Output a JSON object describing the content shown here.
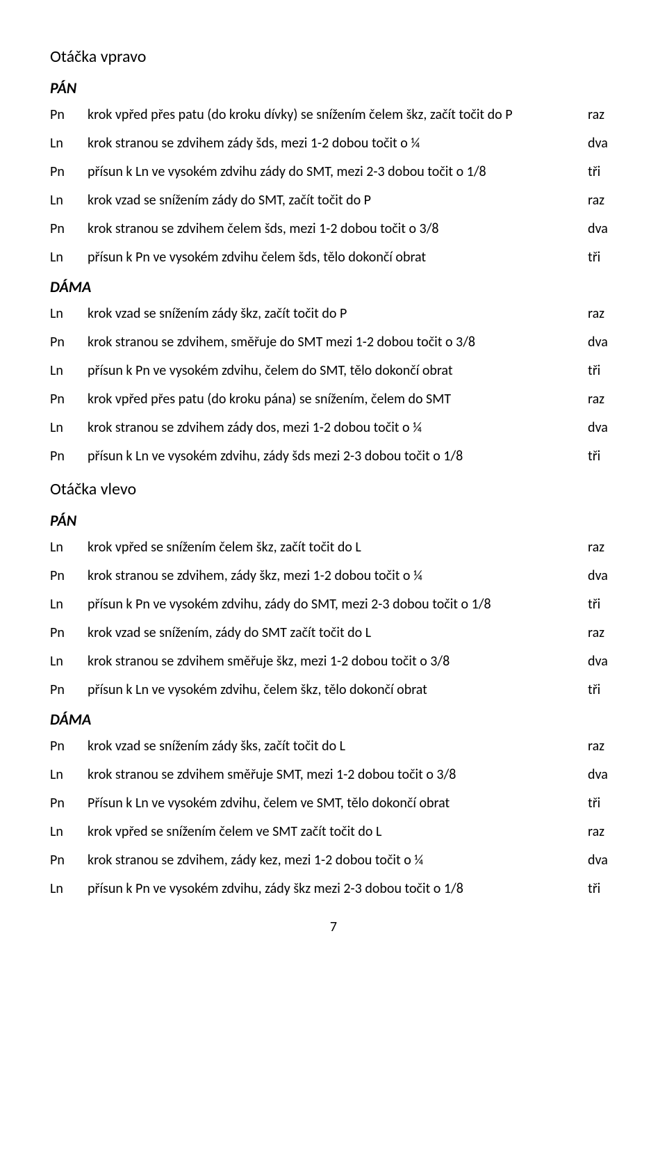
{
  "section1": {
    "title": "Otáčka vpravo",
    "pan": {
      "label": "PÁN",
      "rows": [
        {
          "foot": "Pn",
          "desc": "krok vpřed přes patu (do kroku dívky) se snížením čelem škz, začít točit do P",
          "count": "raz"
        },
        {
          "foot": "Ln",
          "desc": "krok stranou se zdvihem zády šds, mezi 1-2 dobou točit o ¼",
          "count": "dva"
        },
        {
          "foot": "Pn",
          "desc": "přísun k Ln ve vysokém zdvihu zády do SMT, mezi 2-3 dobou točit o 1/8",
          "count": "tři"
        },
        {
          "foot": "Ln",
          "desc": "krok vzad se snížením zády do SMT, začít točit do P",
          "count": "raz"
        },
        {
          "foot": "Pn",
          "desc": "krok stranou se zdvihem čelem šds, mezi 1-2 dobou točit o 3/8",
          "count": "dva"
        },
        {
          "foot": "Ln",
          "desc": "přísun k Pn ve vysokém zdvihu čelem šds, tělo dokončí obrat",
          "count": "tři"
        }
      ]
    },
    "dama": {
      "label": "DÁMA",
      "rows": [
        {
          "foot": "Ln",
          "desc": "krok vzad se snížením zády škz, začít točit do P",
          "count": "raz"
        },
        {
          "foot": "Pn",
          "desc": "krok stranou se zdvihem, směřuje do SMT mezi 1-2 dobou točit o 3/8",
          "count": "dva"
        },
        {
          "foot": "Ln",
          "desc": "přísun k Pn ve vysokém zdvihu, čelem do SMT, tělo dokončí obrat",
          "count": "tři"
        },
        {
          "foot": "Pn",
          "desc": "krok vpřed přes patu (do kroku pána) se snížením, čelem do SMT",
          "count": "raz"
        },
        {
          "foot": "Ln",
          "desc": "krok stranou se zdvihem zády dos, mezi 1-2 dobou točit o ¼",
          "count": "dva"
        },
        {
          "foot": "Pn",
          "desc": "přísun k Ln ve vysokém zdvihu, zády šds mezi 2-3 dobou točit o 1/8",
          "count": "tři"
        }
      ]
    }
  },
  "section2": {
    "title": "Otáčka vlevo",
    "pan": {
      "label": "PÁN",
      "rows": [
        {
          "foot": "Ln",
          "desc": "krok vpřed se snížením čelem škz, začít točit do L",
          "count": "raz"
        },
        {
          "foot": "Pn",
          "desc": "krok stranou se zdvihem, zády škz, mezi 1-2 dobou točit o ¼",
          "count": "dva"
        },
        {
          "foot": "Ln",
          "desc": "přísun k Pn ve vysokém zdvihu, zády do SMT, mezi 2-3 dobou točit o 1/8",
          "count": "tři"
        },
        {
          "foot": "Pn",
          "desc": "krok vzad se snížením, zády do SMT začít točit do L",
          "count": "raz"
        },
        {
          "foot": "Ln",
          "desc": "krok stranou se zdvihem směřuje škz, mezi 1-2 dobou točit o 3/8",
          "count": "dva"
        },
        {
          "foot": "Pn",
          "desc": "přísun k Ln ve vysokém zdvihu, čelem škz, tělo dokončí obrat",
          "count": "tři"
        }
      ]
    },
    "dama": {
      "label": "DÁMA",
      "rows": [
        {
          "foot": "Pn",
          "desc": "krok vzad se snížením zády šks, začít točit do L",
          "count": "raz"
        },
        {
          "foot": "Ln",
          "desc": "krok stranou se zdvihem směřuje SMT, mezi 1-2 dobou točit o 3/8",
          "count": "dva"
        },
        {
          "foot": "Pn",
          "desc": "Přísun k Ln ve vysokém zdvihu,  čelem ve SMT, tělo dokončí obrat",
          "count": "tři"
        },
        {
          "foot": "Ln",
          "desc": "krok vpřed se snížením čelem ve SMT začít točit do L",
          "count": "raz"
        },
        {
          "foot": "Pn",
          "desc": "krok stranou se zdvihem, zády kez, mezi 1-2 dobou točit o ¼",
          "count": "dva"
        },
        {
          "foot": "Ln",
          "desc": "přísun k Pn ve vysokém zdvihu, zády škz mezi 2-3 dobou točit o 1/8",
          "count": "tři"
        }
      ]
    }
  },
  "pageNumber": "7"
}
